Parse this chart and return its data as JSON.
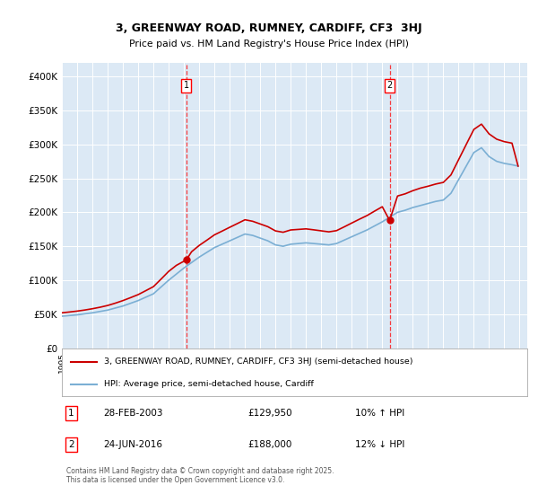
{
  "title_line1": "3, GREENWAY ROAD, RUMNEY, CARDIFF, CF3  3HJ",
  "title_line2": "Price paid vs. HM Land Registry's House Price Index (HPI)",
  "background_color": "#dce9f5",
  "figure_bg": "#ffffff",
  "red_line_color": "#cc0000",
  "blue_line_color": "#7bafd4",
  "red_line_label": "3, GREENWAY ROAD, RUMNEY, CARDIFF, CF3 3HJ (semi-detached house)",
  "blue_line_label": "HPI: Average price, semi-detached house, Cardiff",
  "marker1_x": 2003.16,
  "marker1_value": 129950,
  "marker1_date_str": "28-FEB-2003",
  "marker1_price_str": "£129,950",
  "marker1_hpi_str": "10% ↑ HPI",
  "marker2_x": 2016.48,
  "marker2_value": 188000,
  "marker2_date_str": "24-JUN-2016",
  "marker2_price_str": "£188,000",
  "marker2_hpi_str": "12% ↓ HPI",
  "footer": "Contains HM Land Registry data © Crown copyright and database right 2025.\nThis data is licensed under the Open Government Licence v3.0.",
  "ylim": [
    0,
    420000
  ],
  "yticks": [
    0,
    50000,
    100000,
    150000,
    200000,
    250000,
    300000,
    350000,
    400000
  ],
  "xlim": [
    1995,
    2025.5
  ],
  "years_hpi": [
    1995.0,
    1995.5,
    1996.0,
    1996.5,
    1997.0,
    1997.5,
    1998.0,
    1998.5,
    1999.0,
    1999.5,
    2000.0,
    2000.5,
    2001.0,
    2001.5,
    2002.0,
    2002.5,
    2003.0,
    2003.5,
    2004.0,
    2004.5,
    2005.0,
    2005.5,
    2006.0,
    2006.5,
    2007.0,
    2007.5,
    2008.0,
    2008.5,
    2009.0,
    2009.5,
    2010.0,
    2010.5,
    2011.0,
    2011.5,
    2012.0,
    2012.5,
    2013.0,
    2013.5,
    2014.0,
    2014.5,
    2015.0,
    2015.5,
    2016.0,
    2016.5,
    2017.0,
    2017.5,
    2018.0,
    2018.5,
    2019.0,
    2019.5,
    2020.0,
    2020.5,
    2021.0,
    2021.5,
    2022.0,
    2022.5,
    2023.0,
    2023.5,
    2024.0,
    2024.5,
    2024.9
  ],
  "vals_hpi": [
    47000,
    48000,
    49000,
    50500,
    52000,
    54000,
    56000,
    59000,
    62000,
    66000,
    70000,
    75000,
    80000,
    90000,
    100000,
    109000,
    118000,
    126000,
    134000,
    141000,
    148000,
    153000,
    158000,
    163000,
    168000,
    166000,
    162000,
    158000,
    152000,
    150000,
    153000,
    154000,
    155000,
    154000,
    153000,
    152000,
    154000,
    159000,
    164000,
    169000,
    174000,
    180000,
    186000,
    193000,
    200000,
    203000,
    207000,
    210000,
    213000,
    216000,
    218000,
    228000,
    248000,
    268000,
    288000,
    295000,
    282000,
    275000,
    272000,
    270000,
    268000
  ],
  "years_red": [
    1995.0,
    1995.5,
    1996.0,
    1996.5,
    1997.0,
    1997.5,
    1998.0,
    1998.5,
    1999.0,
    1999.5,
    2000.0,
    2000.5,
    2001.0,
    2001.5,
    2002.0,
    2002.5,
    2003.16,
    2003.5,
    2004.0,
    2004.5,
    2005.0,
    2005.5,
    2006.0,
    2006.5,
    2007.0,
    2007.5,
    2008.0,
    2008.5,
    2009.0,
    2009.5,
    2010.0,
    2010.5,
    2011.0,
    2011.5,
    2012.0,
    2012.5,
    2013.0,
    2013.5,
    2014.0,
    2014.5,
    2015.0,
    2015.5,
    2016.0,
    2016.48,
    2017.0,
    2017.5,
    2018.0,
    2018.5,
    2019.0,
    2019.5,
    2020.0,
    2020.5,
    2021.0,
    2021.5,
    2022.0,
    2022.5,
    2023.0,
    2023.5,
    2024.0,
    2024.5,
    2024.9
  ],
  "vals_red": [
    52000,
    53200,
    54500,
    56100,
    58000,
    60200,
    62800,
    66200,
    70000,
    74300,
    78800,
    84600,
    90500,
    101600,
    113000,
    121800,
    129950,
    141900,
    151200,
    158900,
    166800,
    172300,
    177900,
    183400,
    189000,
    186800,
    182800,
    178800,
    172600,
    170600,
    174000,
    174800,
    175600,
    174200,
    172700,
    171200,
    173000,
    178500,
    184200,
    189800,
    195200,
    201800,
    208200,
    188000,
    224000,
    227200,
    231800,
    235600,
    238400,
    241600,
    244000,
    255000,
    277400,
    299800,
    322000,
    329800,
    315400,
    307600,
    304000,
    301800,
    268000
  ]
}
